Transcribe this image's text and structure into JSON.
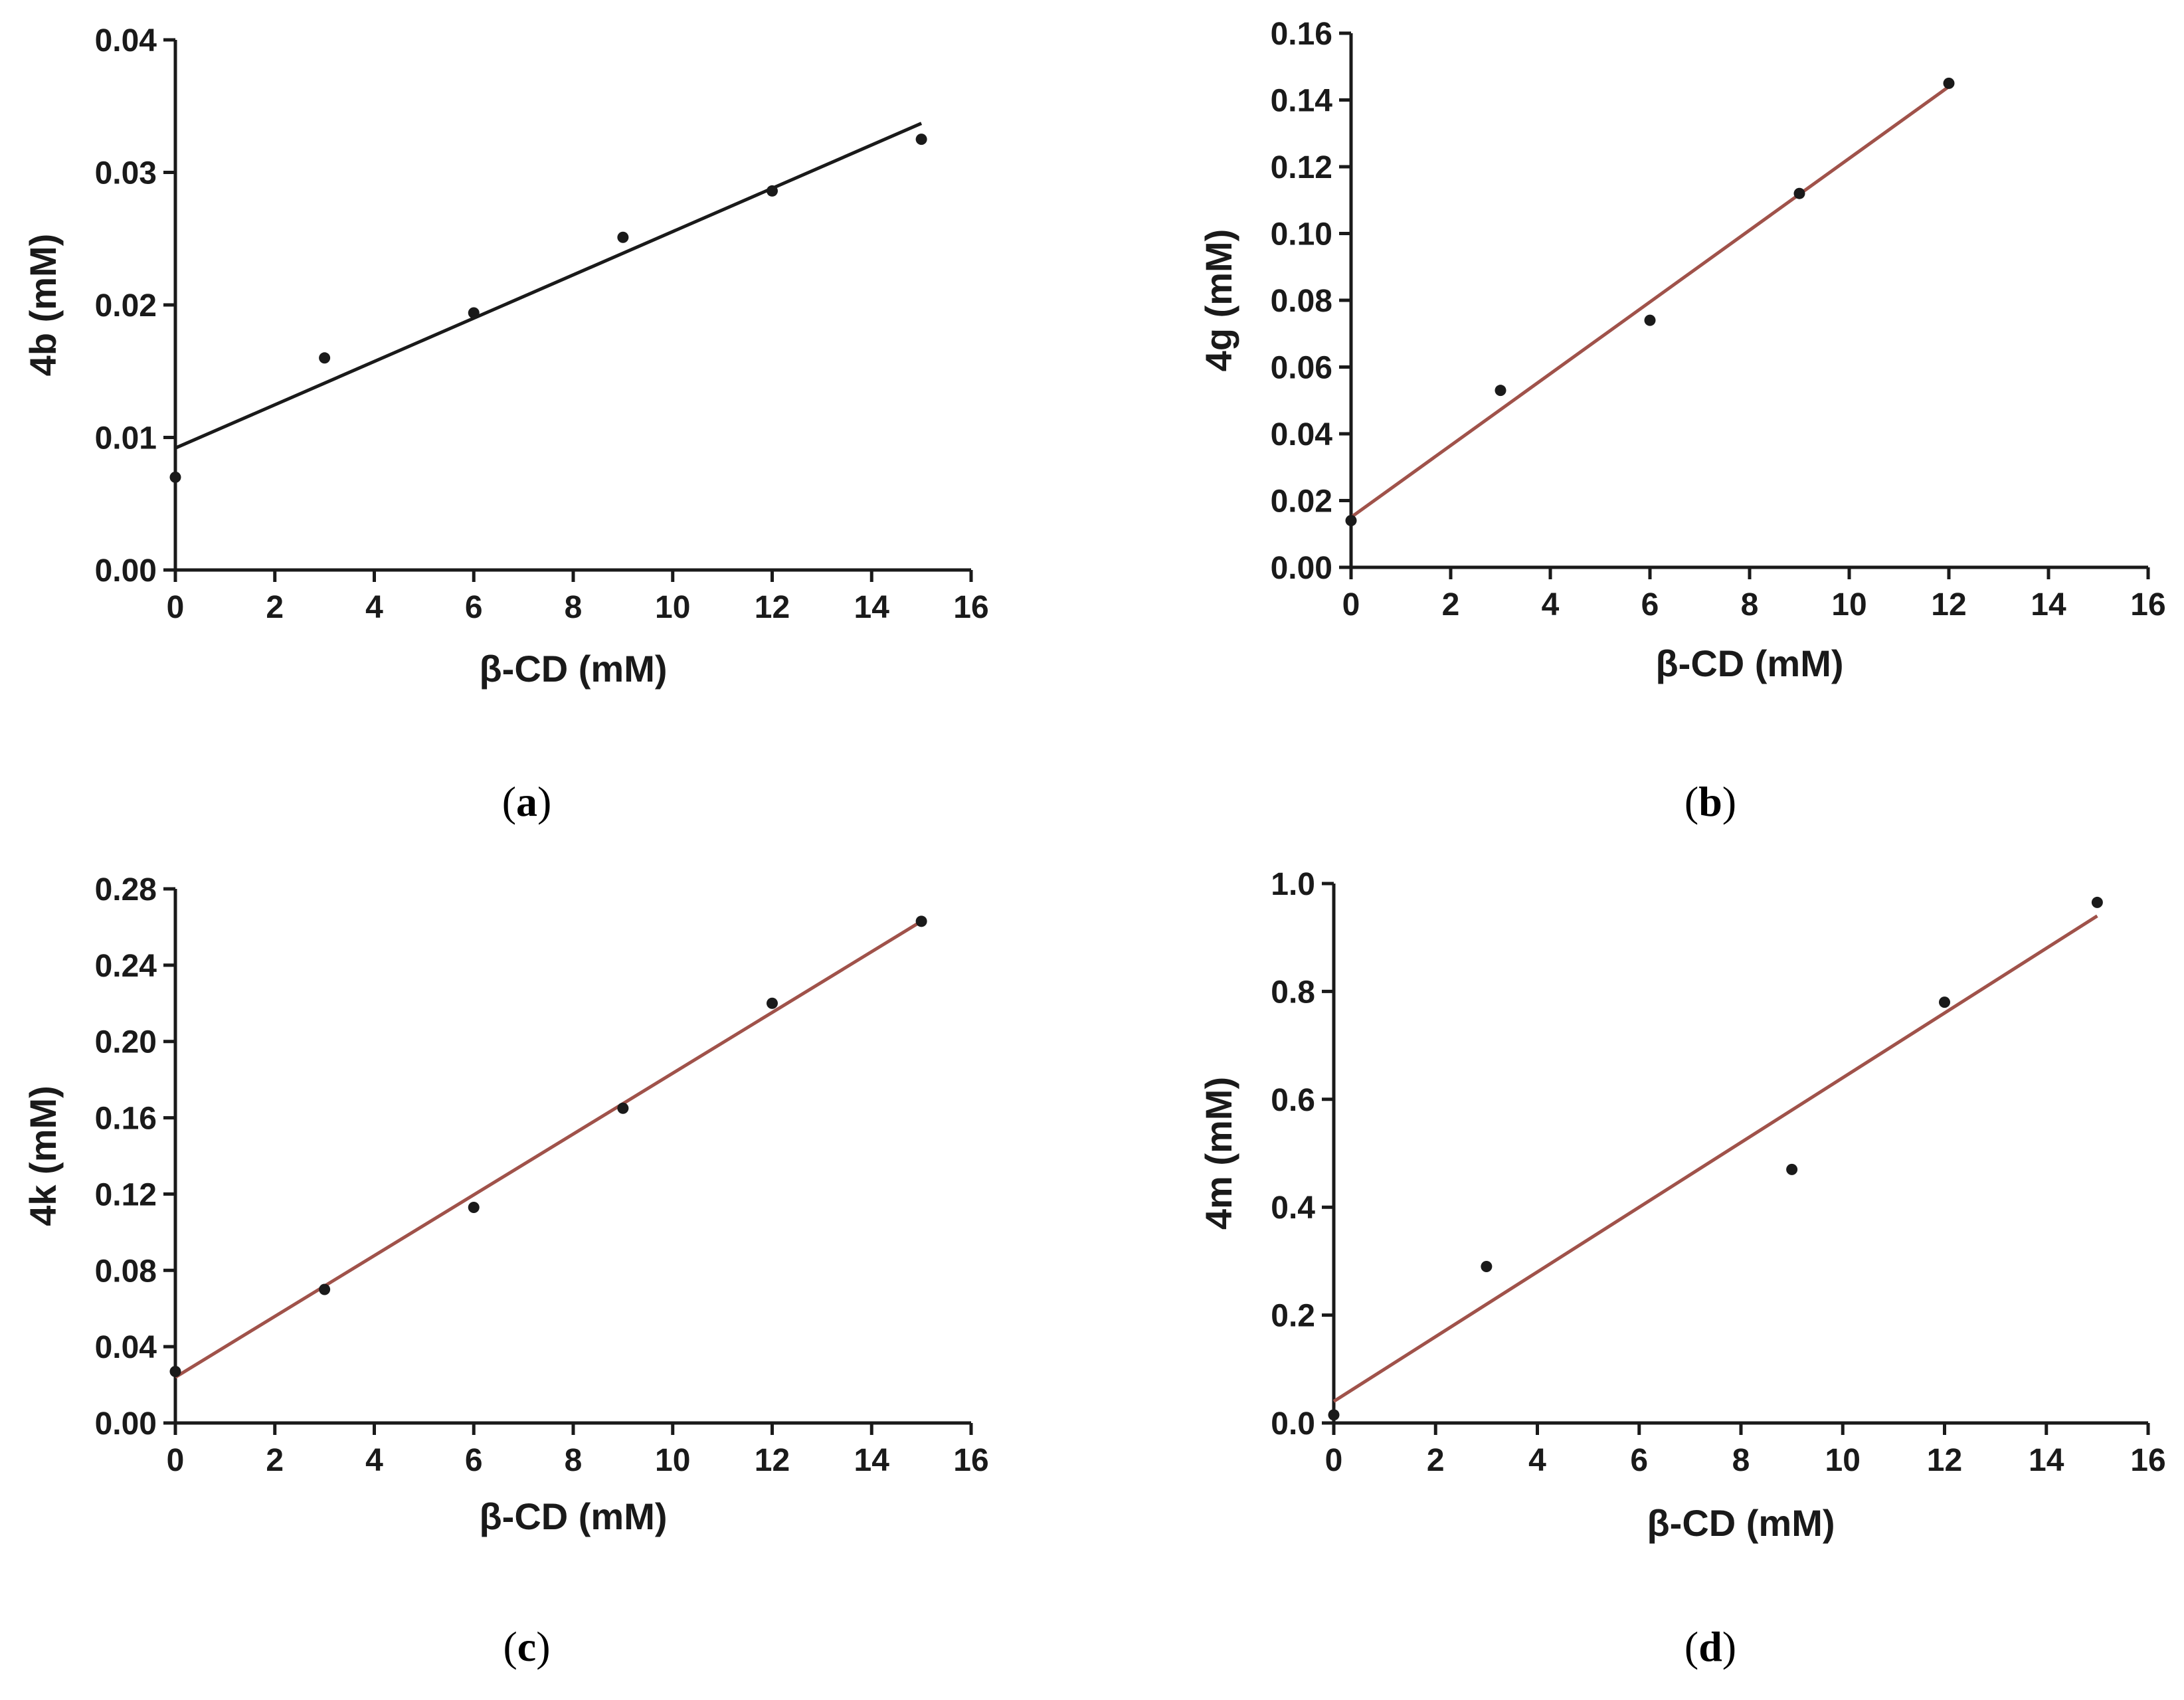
{
  "chart_data": [
    {
      "type": "scatter",
      "panel_label": "a",
      "xlabel": "β-CD (mM)",
      "ylabel": "4b (mM)",
      "xlim": [
        0,
        16
      ],
      "ylim": [
        0,
        0.04
      ],
      "xticks": [
        "0",
        "2",
        "4",
        "6",
        "8",
        "10",
        "12",
        "14",
        "16"
      ],
      "yticks": [
        "0.00",
        "0.01",
        "0.02",
        "0.03",
        "0.04"
      ],
      "x": [
        0,
        3,
        6,
        9,
        12,
        15
      ],
      "y": [
        0.007,
        0.016,
        0.0194,
        0.0251,
        0.0286,
        0.0325
      ],
      "fit_line": {
        "x": [
          0,
          15
        ],
        "y": [
          0.0092,
          0.0337
        ]
      },
      "line_color": "#1a1a1a"
    },
    {
      "type": "scatter",
      "panel_label": "b",
      "xlabel": "β-CD (mM)",
      "ylabel": "4g (mM)",
      "xlim": [
        0,
        16
      ],
      "ylim": [
        0,
        0.16
      ],
      "xticks": [
        "0",
        "2",
        "4",
        "6",
        "8",
        "10",
        "12",
        "14",
        "16"
      ],
      "yticks": [
        "0.00",
        "0.02",
        "0.04",
        "0.06",
        "0.08",
        "0.10",
        "0.12",
        "0.14",
        "0.16"
      ],
      "x": [
        0,
        3,
        6,
        9,
        12
      ],
      "y": [
        0.014,
        0.053,
        0.074,
        0.112,
        0.145
      ],
      "fit_line": {
        "x": [
          0,
          12
        ],
        "y": [
          0.015,
          0.144
        ]
      },
      "line_color": "#a0524a"
    },
    {
      "type": "scatter",
      "panel_label": "c",
      "xlabel": "β-CD (mM)",
      "ylabel": "4k (mM)",
      "xlim": [
        0,
        16
      ],
      "ylim": [
        0,
        0.28
      ],
      "xticks": [
        "0",
        "2",
        "4",
        "6",
        "8",
        "10",
        "12",
        "14",
        "16"
      ],
      "yticks": [
        "0.00",
        "0.04",
        "0.08",
        "0.12",
        "0.16",
        "0.20",
        "0.24",
        "0.28"
      ],
      "x": [
        0,
        3,
        6,
        9,
        12,
        15
      ],
      "y": [
        0.027,
        0.07,
        0.113,
        0.165,
        0.22,
        0.263
      ],
      "fit_line": {
        "x": [
          0,
          15
        ],
        "y": [
          0.024,
          0.263
        ]
      },
      "line_color": "#a0524a"
    },
    {
      "type": "scatter",
      "panel_label": "d",
      "xlabel": "β-CD (mM)",
      "ylabel": "4m (mM)",
      "xlim": [
        0,
        16
      ],
      "ylim": [
        0,
        1.0
      ],
      "xticks": [
        "0",
        "2",
        "4",
        "6",
        "8",
        "10",
        "12",
        "14",
        "16"
      ],
      "yticks": [
        "0.0",
        "0.2",
        "0.4",
        "0.6",
        "0.8",
        "1.0"
      ],
      "x": [
        0,
        3,
        9,
        12,
        15
      ],
      "y": [
        0.015,
        0.29,
        0.47,
        0.78,
        0.965
      ],
      "fit_line": {
        "x": [
          0,
          15
        ],
        "y": [
          0.04,
          0.94
        ]
      },
      "line_color": "#a0524a"
    }
  ],
  "colors": {
    "axis": "#1a1a1a",
    "point": "#1a1a1a"
  }
}
